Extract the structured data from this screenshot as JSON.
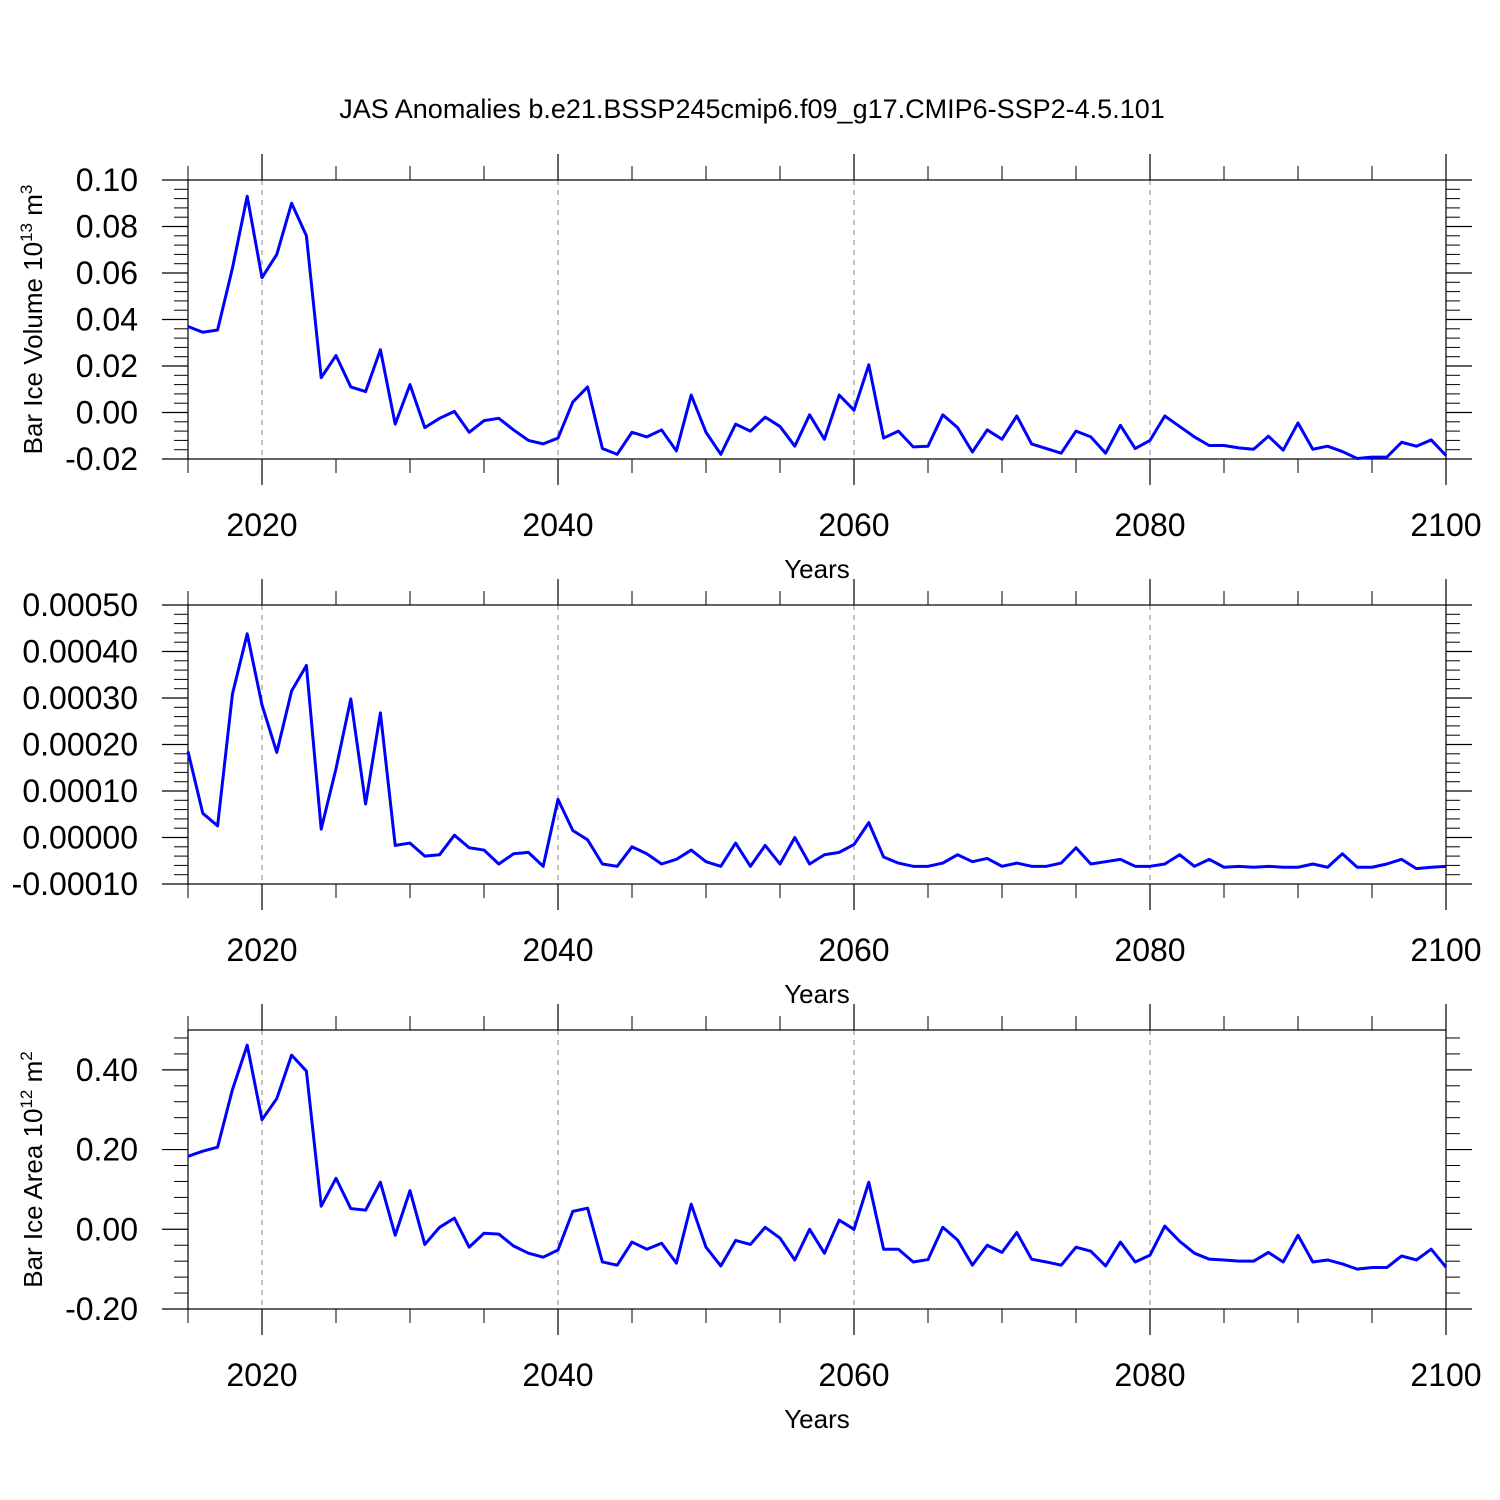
{
  "figure": {
    "title": "JAS Anomalies b.e21.BSSP245cmip6.f09_g17.CMIP6-SSP2-4.5.101"
  },
  "style": {
    "line_color": "#0000ff",
    "grid_color": "#888888"
  },
  "chart_data": [
    {
      "type": "line",
      "title": "",
      "xlabel": "Years",
      "ylabel": "Bar Ice Volume 10",
      "ylabel_exponent": "13",
      "ylabel_unit": " m",
      "ylabel_unit_exponent": "3",
      "xlim": [
        2015,
        2100
      ],
      "ylim": [
        -0.02,
        0.1
      ],
      "x_ticks": [
        2020,
        2040,
        2060,
        2080,
        2100
      ],
      "x_tick_labels": [
        "2020",
        "2040",
        "2060",
        "2080",
        "2100"
      ],
      "y_ticks": [
        -0.02,
        0.0,
        0.02,
        0.04,
        0.06,
        0.08,
        0.1
      ],
      "y_tick_labels": [
        "-0.02",
        "0.00",
        "0.02",
        "0.04",
        "0.06",
        "0.08",
        "0.10"
      ],
      "grid_x": [
        2020,
        2040,
        2060,
        2080
      ],
      "series": [
        {
          "values": [
            0.037,
            0.0345,
            0.0355,
            0.062,
            0.093,
            0.058,
            0.068,
            0.09,
            0.076,
            0.015,
            0.0245,
            0.011,
            0.009,
            0.027,
            -0.005,
            0.012,
            -0.0065,
            -0.0025,
            0.0005,
            -0.0085,
            -0.0035,
            -0.0025,
            -0.0075,
            -0.012,
            -0.0135,
            -0.011,
            0.0045,
            0.011,
            -0.0155,
            -0.018,
            -0.0085,
            -0.0105,
            -0.0075,
            -0.0165,
            0.0075,
            -0.0085,
            -0.018,
            -0.005,
            -0.008,
            -0.002,
            -0.006,
            -0.0145,
            -0.001,
            -0.0115,
            0.0075,
            0.001,
            0.0205,
            -0.011,
            -0.008,
            -0.0148,
            -0.0145,
            -0.001,
            -0.0065,
            -0.017,
            -0.0075,
            -0.0115,
            -0.0015,
            -0.0135,
            -0.0155,
            -0.0175,
            -0.008,
            -0.0105,
            -0.0175,
            -0.0055,
            -0.0155,
            -0.012,
            -0.0015,
            -0.006,
            -0.0105,
            -0.0142,
            -0.0142,
            -0.0152,
            -0.0158,
            -0.0102,
            -0.0162,
            -0.0045,
            -0.0158,
            -0.0145,
            -0.0168,
            -0.0198,
            -0.0192,
            -0.0192,
            -0.0128,
            -0.0145,
            -0.0118,
            -0.0185
          ]
        }
      ]
    },
    {
      "type": "line",
      "title": "",
      "xlabel": "Years",
      "ylabel": "",
      "xlim": [
        2015,
        2100
      ],
      "ylim": [
        -0.0001,
        0.0005
      ],
      "x_ticks": [
        2020,
        2040,
        2060,
        2080,
        2100
      ],
      "x_tick_labels": [
        "2020",
        "2040",
        "2060",
        "2080",
        "2100"
      ],
      "y_ticks": [
        -0.0001,
        0.0,
        0.0001,
        0.0002,
        0.0003,
        0.0004,
        0.0005
      ],
      "y_tick_labels": [
        "-0.00010",
        "0.00000",
        "0.00010",
        "0.00020",
        "0.00030",
        "0.00040",
        "0.00050"
      ],
      "grid_x": [
        2020,
        2040,
        2060,
        2080
      ],
      "series": [
        {
          "values": [
            0.000185,
            5.2e-05,
            2.5e-05,
            0.000308,
            0.000438,
            0.000285,
            0.000183,
            0.000315,
            0.00037,
            1.8e-05,
            0.000148,
            0.000298,
            7.2e-05,
            0.000268,
            -1.7e-05,
            -1.2e-05,
            -4e-05,
            -3.7e-05,
            5e-06,
            -2.2e-05,
            -2.7e-05,
            -5.7e-05,
            -3.5e-05,
            -3.2e-05,
            -6.2e-05,
            8.2e-05,
            1.5e-05,
            -5e-06,
            -5.7e-05,
            -6.2e-05,
            -2e-05,
            -3.5e-05,
            -5.7e-05,
            -4.7e-05,
            -2.7e-05,
            -5.2e-05,
            -6.2e-05,
            -1.2e-05,
            -6.2e-05,
            -1.7e-05,
            -5.7e-05,
            0.0,
            -5.7e-05,
            -3.7e-05,
            -3.2e-05,
            -1.5e-05,
            3.2e-05,
            -4.2e-05,
            -5.5e-05,
            -6.2e-05,
            -6.2e-05,
            -5.5e-05,
            -3.7e-05,
            -5.2e-05,
            -4.5e-05,
            -6.2e-05,
            -5.5e-05,
            -6.2e-05,
            -6.2e-05,
            -5.5e-05,
            -2.2e-05,
            -5.7e-05,
            -5.2e-05,
            -4.7e-05,
            -6.2e-05,
            -6.2e-05,
            -5.7e-05,
            -3.7e-05,
            -6.2e-05,
            -4.7e-05,
            -6.4e-05,
            -6.2e-05,
            -6.4e-05,
            -6.2e-05,
            -6.4e-05,
            -6.4e-05,
            -5.7e-05,
            -6.4e-05,
            -3.5e-05,
            -6.4e-05,
            -6.4e-05,
            -5.7e-05,
            -4.7e-05,
            -6.7e-05,
            -6.4e-05,
            -6.2e-05
          ]
        }
      ]
    },
    {
      "type": "line",
      "title": "",
      "xlabel": "Years",
      "ylabel": "Bar Ice Area 10",
      "ylabel_exponent": "12",
      "ylabel_unit": " m",
      "ylabel_unit_exponent": "2",
      "xlim": [
        2015,
        2100
      ],
      "ylim": [
        -0.2,
        0.5
      ],
      "x_ticks": [
        2020,
        2040,
        2060,
        2080,
        2100
      ],
      "x_tick_labels": [
        "2020",
        "2040",
        "2060",
        "2080",
        "2100"
      ],
      "y_ticks": [
        -0.2,
        0.0,
        0.2,
        0.4
      ],
      "y_tick_labels": [
        "-0.20",
        "0.00",
        "0.20",
        "0.40"
      ],
      "grid_x": [
        2020,
        2040,
        2060,
        2080
      ],
      "series": [
        {
          "values": [
            0.183,
            0.196,
            0.206,
            0.35,
            0.462,
            0.275,
            0.328,
            0.437,
            0.397,
            0.058,
            0.128,
            0.052,
            0.048,
            0.118,
            -0.015,
            0.097,
            -0.038,
            0.005,
            0.028,
            -0.045,
            -0.01,
            -0.012,
            -0.042,
            -0.06,
            -0.07,
            -0.052,
            0.045,
            0.053,
            -0.082,
            -0.09,
            -0.032,
            -0.05,
            -0.035,
            -0.085,
            0.063,
            -0.045,
            -0.092,
            -0.028,
            -0.038,
            0.005,
            -0.022,
            -0.077,
            0.0,
            -0.06,
            0.023,
            0.0,
            0.118,
            -0.05,
            -0.05,
            -0.082,
            -0.076,
            0.005,
            -0.027,
            -0.09,
            -0.04,
            -0.058,
            -0.008,
            -0.075,
            -0.082,
            -0.09,
            -0.045,
            -0.055,
            -0.092,
            -0.032,
            -0.082,
            -0.065,
            0.008,
            -0.03,
            -0.06,
            -0.075,
            -0.077,
            -0.08,
            -0.08,
            -0.058,
            -0.082,
            -0.015,
            -0.082,
            -0.077,
            -0.087,
            -0.1,
            -0.096,
            -0.096,
            -0.067,
            -0.077,
            -0.05,
            -0.095
          ]
        }
      ]
    }
  ]
}
